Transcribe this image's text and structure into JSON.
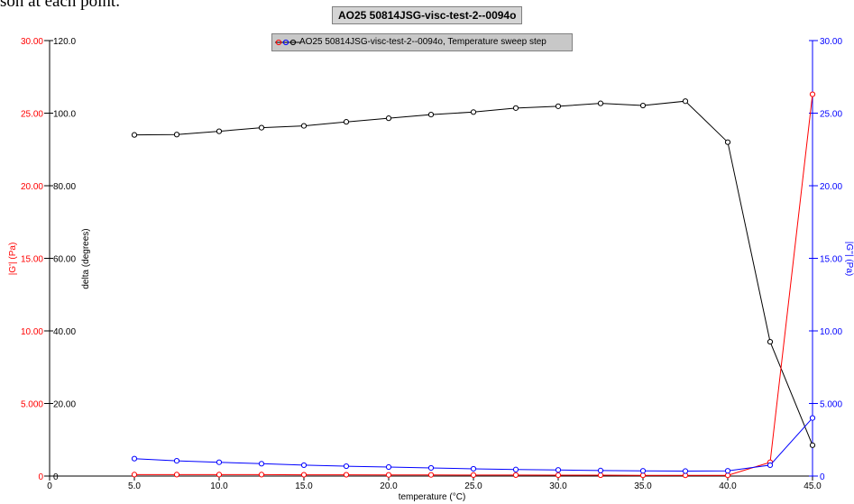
{
  "page": {
    "caption": "son at each point."
  },
  "colors": {
    "g_prime": "#ff0000",
    "g_double_prime": "#0000ff",
    "delta": "#000000",
    "title_box": "#d4d4d4",
    "legend_box": "#c8c8c8"
  },
  "chart_data": {
    "type": "line",
    "title": "AO25 50814JSG-visc-test-2--0094o",
    "legend_label": "AO25 50814JSG-visc-test-2--0094o, Temperature sweep step",
    "xlabel": "temperature (°C)",
    "ylabel_left_outer": "|G'| (Pa)",
    "ylabel_left_inner": "delta (degrees)",
    "ylabel_right": "|G''| (Pa)",
    "xlim": [
      0,
      45
    ],
    "x_ticks": [
      "0",
      "5.0",
      "10.0",
      "15.0",
      "20.0",
      "25.0",
      "30.0",
      "35.0",
      "40.0",
      "45.0"
    ],
    "x_tick_values": [
      0,
      5,
      10,
      15,
      20,
      25,
      30,
      35,
      40,
      45
    ],
    "ylim_left_outer": [
      0,
      30
    ],
    "y_ticks_left_outer": [
      "0",
      "5.000",
      "10.00",
      "15.00",
      "20.00",
      "25.00",
      "30.00"
    ],
    "ylim_left_inner": [
      0,
      120
    ],
    "y_ticks_left_inner": [
      "0",
      "20.00",
      "40.00",
      "60.00",
      "80.00",
      "100.0",
      "120.0"
    ],
    "ylim_right": [
      0,
      30
    ],
    "y_ticks_right": [
      "0",
      "5.000",
      "10.00",
      "15.00",
      "20.00",
      "25.00",
      "30.00"
    ],
    "y_tick_values_30": [
      0,
      5,
      10,
      15,
      20,
      25,
      30
    ],
    "y_tick_values_120": [
      0,
      20,
      40,
      60,
      80,
      100,
      120
    ],
    "x": [
      5.0,
      7.5,
      10.0,
      12.5,
      15.0,
      17.5,
      20.0,
      22.5,
      25.0,
      27.5,
      30.0,
      32.5,
      35.0,
      37.5,
      40.0,
      42.5,
      45.0
    ],
    "series": [
      {
        "name": "delta",
        "axis": "left_inner",
        "color": "#000000",
        "values": [
          94.0,
          94.1,
          95.0,
          96.0,
          96.5,
          97.6,
          98.6,
          99.6,
          100.3,
          101.4,
          101.9,
          102.7,
          102.1,
          103.3,
          92.0,
          37.0,
          8.5
        ]
      },
      {
        "name": "|G'|",
        "axis": "left_outer",
        "color": "#ff0000",
        "values": [
          0.1,
          0.1,
          0.1,
          0.1,
          0.09,
          0.09,
          0.08,
          0.08,
          0.07,
          0.07,
          0.06,
          0.06,
          0.05,
          0.05,
          0.05,
          0.95,
          26.3
        ]
      },
      {
        "name": "|G''|",
        "axis": "right",
        "color": "#0000ff",
        "values": [
          1.2,
          1.05,
          0.95,
          0.85,
          0.75,
          0.68,
          0.62,
          0.56,
          0.5,
          0.45,
          0.42,
          0.38,
          0.36,
          0.34,
          0.36,
          0.75,
          4.0
        ]
      }
    ]
  }
}
